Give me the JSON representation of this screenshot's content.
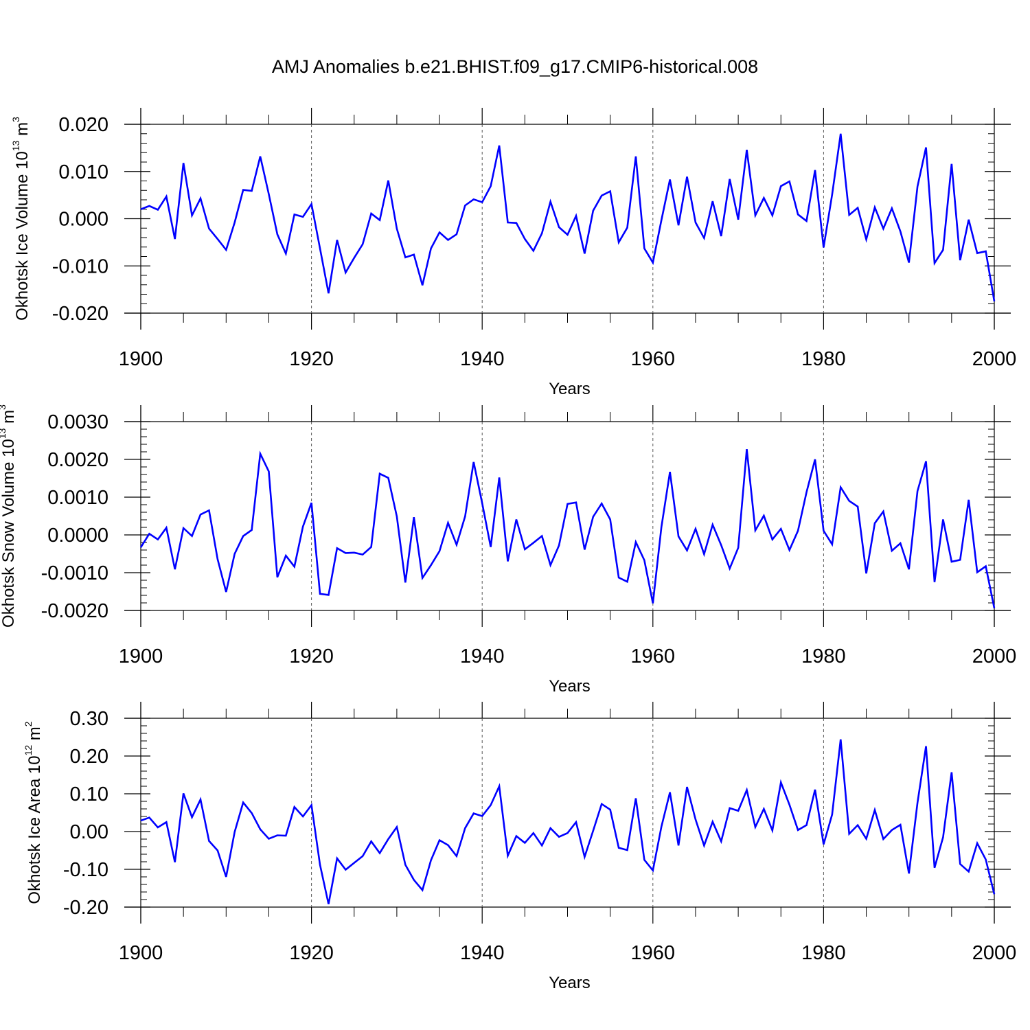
{
  "title": "AMJ Anomalies b.e21.BHIST.f09_g17.CMIP6-historical.008",
  "colors": {
    "line": "#0000ff",
    "axis": "#000000",
    "grid": "#555555"
  },
  "chart_data": [
    {
      "type": "line",
      "xlabel": "Years",
      "ylabel": {
        "text": "Okhotsk Ice Volume 10",
        "sup": "13",
        "unit": " m",
        "unit_sup": "3"
      },
      "xlim": [
        1900,
        2000
      ],
      "ylim": [
        -0.02,
        0.02
      ],
      "x_ticks": [
        1900,
        1920,
        1940,
        1960,
        1980,
        2000
      ],
      "y_ticks": [
        -0.02,
        -0.01,
        0.0,
        0.01,
        0.02
      ],
      "y_tick_labels": [
        "-0.020",
        "-0.010",
        "0.000",
        "0.010",
        "0.020"
      ],
      "y_minor_step": 0.002,
      "series": [
        {
          "name": "Okhotsk Ice Volume",
          "x_start": 1900,
          "x_step": 1,
          "values": [
            0.002,
            0.0027,
            0.0019,
            0.0047,
            -0.0043,
            0.0118,
            0.0007,
            0.0043,
            -0.0021,
            -0.0043,
            -0.0066,
            -0.0008,
            0.0061,
            0.0059,
            0.0132,
            0.0052,
            -0.0033,
            -0.0074,
            0.0009,
            0.0004,
            0.0031,
            -0.0063,
            -0.0158,
            -0.0045,
            -0.0114,
            -0.0083,
            -0.0054,
            0.0011,
            -0.0003,
            0.0081,
            -0.0021,
            -0.0082,
            -0.0076,
            -0.0141,
            -0.0063,
            -0.0029,
            -0.0045,
            -0.0033,
            0.0028,
            0.0041,
            0.0035,
            0.0069,
            0.0155,
            -0.0008,
            -0.0009,
            -0.0043,
            -0.0068,
            -0.0031,
            0.0036,
            -0.0018,
            -0.0034,
            0.0006,
            -0.0074,
            0.0017,
            0.0049,
            0.0058,
            -0.005,
            -0.0019,
            0.0132,
            -0.0063,
            -0.0093,
            -0.0003,
            0.0083,
            -0.0014,
            0.0089,
            -0.0008,
            -0.0041,
            0.0037,
            -0.0037,
            0.0084,
            -0.0002,
            0.0146,
            0.0007,
            0.0044,
            0.0007,
            0.0069,
            0.0079,
            0.0009,
            -0.0005,
            0.0103,
            -0.0061,
            0.0051,
            0.018,
            0.0008,
            0.0023,
            -0.0044,
            0.0024,
            -0.0021,
            0.0022,
            -0.0027,
            -0.0093,
            0.0068,
            0.0151,
            -0.0094,
            -0.0066,
            0.0116,
            -0.0088,
            -0.0002,
            -0.0073,
            -0.0069,
            -0.0175
          ]
        }
      ]
    },
    {
      "type": "line",
      "xlabel": "Years",
      "ylabel": {
        "text": "Okhotsk Snow Volume 10",
        "sup": "13",
        "unit": " m",
        "unit_sup": "3"
      },
      "xlim": [
        1900,
        2000
      ],
      "ylim": [
        -0.002,
        0.003
      ],
      "x_ticks": [
        1900,
        1920,
        1940,
        1960,
        1980,
        2000
      ],
      "y_ticks": [
        -0.002,
        -0.001,
        0.0,
        0.001,
        0.002,
        0.003
      ],
      "y_tick_labels": [
        "-0.0020",
        "-0.0010",
        "0.0000",
        "0.0010",
        "0.0020",
        "0.0030"
      ],
      "y_minor_step": 0.0002,
      "series": [
        {
          "name": "Okhotsk Snow Volume",
          "x_start": 1900,
          "x_step": 1,
          "values": [
            -0.00033,
            3e-05,
            -0.00012,
            0.00019,
            -0.00091,
            0.00018,
            -3e-05,
            0.00054,
            0.00065,
            -0.00064,
            -0.00151,
            -0.0005,
            -3e-05,
            0.00013,
            0.00215,
            0.00168,
            -0.00112,
            -0.00055,
            -0.00084,
            0.00022,
            0.00085,
            -0.00156,
            -0.00159,
            -0.00035,
            -0.00048,
            -0.00047,
            -0.00052,
            -0.00032,
            0.00162,
            0.00151,
            0.00049,
            -0.00126,
            0.00047,
            -0.00114,
            -0.0008,
            -0.00043,
            0.00032,
            -0.00026,
            0.00049,
            0.00193,
            0.00084,
            -0.00032,
            0.00152,
            -0.0007,
            0.00041,
            -0.00038,
            -0.00021,
            -3e-05,
            -0.0008,
            -0.00028,
            0.00082,
            0.00086,
            -0.00039,
            0.00048,
            0.00083,
            0.00041,
            -0.00113,
            -0.00124,
            -0.00019,
            -0.00067,
            -0.00181,
            0.00021,
            0.00167,
            -4e-05,
            -0.00041,
            0.00016,
            -0.00051,
            0.00027,
            -0.00027,
            -0.00089,
            -0.00034,
            0.00227,
            0.00012,
            0.00051,
            -0.00012,
            0.00016,
            -0.0004,
            0.00011,
            0.00113,
            0.002,
            0.00011,
            -0.00025,
            0.00126,
            0.0009,
            0.00075,
            -0.00102,
            0.00031,
            0.00062,
            -0.00042,
            -0.00022,
            -0.00091,
            0.00116,
            0.00195,
            -0.00125,
            0.00041,
            -0.00071,
            -0.00066,
            0.00093,
            -0.00099,
            -0.00083,
            -0.00194
          ]
        }
      ]
    },
    {
      "type": "line",
      "xlabel": "Years",
      "ylabel": {
        "text": "Okhotsk Ice Area 10",
        "sup": "12",
        "unit": " m",
        "unit_sup": "2"
      },
      "xlim": [
        1900,
        2000
      ],
      "ylim": [
        -0.2,
        0.3
      ],
      "x_ticks": [
        1900,
        1920,
        1940,
        1960,
        1980,
        2000
      ],
      "y_ticks": [
        -0.2,
        -0.1,
        0.0,
        0.1,
        0.2,
        0.3
      ],
      "y_tick_labels": [
        "-0.20",
        "-0.10",
        "0.00",
        "0.10",
        "0.20",
        "0.30"
      ],
      "y_minor_step": 0.02,
      "series": [
        {
          "name": "Okhotsk Ice Area",
          "x_start": 1900,
          "x_step": 1,
          "values": [
            0.029,
            0.037,
            0.011,
            0.025,
            -0.081,
            0.101,
            0.038,
            0.085,
            -0.025,
            -0.05,
            -0.12,
            -0.001,
            0.077,
            0.049,
            0.006,
            -0.019,
            -0.01,
            -0.011,
            0.065,
            0.04,
            0.07,
            -0.088,
            -0.192,
            -0.071,
            -0.101,
            -0.083,
            -0.065,
            -0.026,
            -0.057,
            -0.02,
            0.012,
            -0.088,
            -0.128,
            -0.155,
            -0.076,
            -0.023,
            -0.036,
            -0.065,
            0.009,
            0.048,
            0.041,
            0.07,
            0.12,
            -0.064,
            -0.012,
            -0.03,
            -0.004,
            -0.037,
            0.009,
            -0.014,
            -0.004,
            0.025,
            -0.067,
            0.002,
            0.073,
            0.058,
            -0.043,
            -0.049,
            0.088,
            -0.075,
            -0.103,
            0.013,
            0.104,
            -0.037,
            0.118,
            0.032,
            -0.037,
            0.026,
            -0.026,
            0.062,
            0.055,
            0.11,
            0.012,
            0.06,
            0.003,
            0.13,
            0.071,
            0.004,
            0.017,
            0.111,
            -0.034,
            0.045,
            0.244,
            -0.006,
            0.017,
            -0.019,
            0.057,
            -0.02,
            0.004,
            0.018,
            -0.111,
            0.076,
            0.226,
            -0.096,
            -0.015,
            0.157,
            -0.086,
            -0.106,
            -0.031,
            -0.074,
            -0.166
          ]
        }
      ]
    }
  ]
}
